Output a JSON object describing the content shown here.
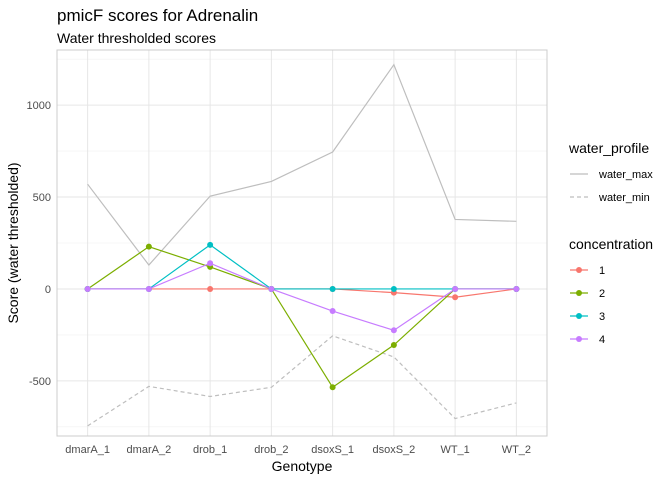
{
  "chart_data": {
    "type": "line",
    "title": "pmicF scores for Adrenalin",
    "subtitle": "Water thresholded scores",
    "xlabel": "Genotype",
    "ylabel": "Score (water thresholded)",
    "ylim": [
      -800,
      1300
    ],
    "y_ticks": [
      -500,
      0,
      500,
      1000
    ],
    "y_tick_labels": [
      "-500",
      "0",
      "500",
      "1000"
    ],
    "grid": true,
    "categories": [
      "dmarA_1",
      "dmarA_2",
      "drob_1",
      "drob_2",
      "dsoxS_1",
      "dsoxS_2",
      "WT_1",
      "WT_2"
    ],
    "water_profile": {
      "legend_title": "water_profile",
      "series": [
        {
          "name": "water_max",
          "color": "#bebebe",
          "dash": "solid",
          "values": [
            570,
            130,
            505,
            585,
            745,
            1220,
            378,
            368
          ]
        },
        {
          "name": "water_min",
          "color": "#bebebe",
          "dash": "dashed",
          "values": [
            -745,
            -530,
            -585,
            -535,
            -255,
            -370,
            -705,
            -620
          ]
        }
      ]
    },
    "concentration": {
      "legend_title": "concentration",
      "series": [
        {
          "name": "1",
          "color": "#f8766d",
          "values": [
            0,
            0,
            0,
            0,
            0,
            -20,
            -45,
            0
          ]
        },
        {
          "name": "2",
          "color": "#7cae00",
          "values": [
            0,
            230,
            120,
            0,
            -535,
            -305,
            0,
            0
          ]
        },
        {
          "name": "3",
          "color": "#00bfc4",
          "values": [
            0,
            0,
            240,
            0,
            0,
            0,
            0,
            0
          ]
        },
        {
          "name": "4",
          "color": "#c77cff",
          "values": [
            0,
            0,
            140,
            0,
            -120,
            -225,
            0,
            0
          ]
        }
      ]
    },
    "legend_position": "right"
  }
}
